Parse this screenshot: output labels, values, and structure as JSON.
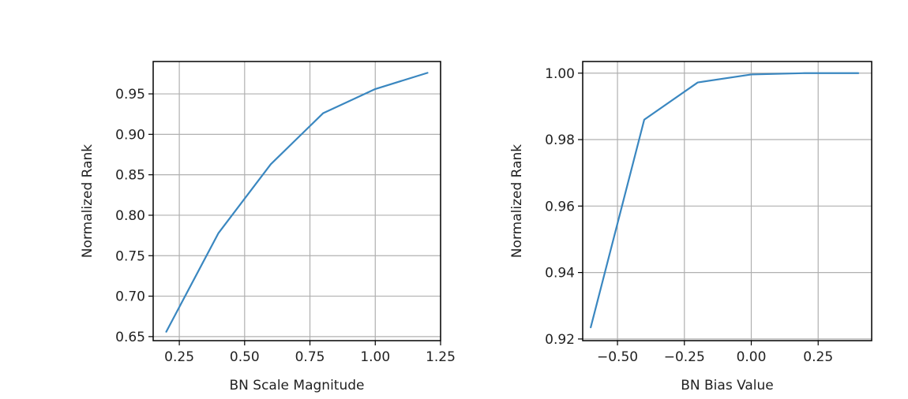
{
  "chart_data": [
    {
      "type": "line",
      "xlabel": "BN Scale Magnitude",
      "ylabel": "Normalized Rank",
      "xlim": [
        0.15,
        1.25
      ],
      "ylim": [
        0.645,
        0.99
      ],
      "xticks": [
        0.25,
        0.5,
        0.75,
        1.0,
        1.25
      ],
      "xtick_labels": [
        "0.25",
        "0.50",
        "0.75",
        "1.00",
        "1.25"
      ],
      "yticks": [
        0.65,
        0.7,
        0.75,
        0.8,
        0.85,
        0.9,
        0.95
      ],
      "ytick_labels": [
        "0.65",
        "0.70",
        "0.75",
        "0.80",
        "0.85",
        "0.90",
        "0.95"
      ],
      "grid": true,
      "color": "#3a87c0",
      "x": [
        0.2,
        0.4,
        0.6,
        0.8,
        1.0,
        1.2
      ],
      "y": [
        0.656,
        0.778,
        0.863,
        0.926,
        0.956,
        0.976
      ]
    },
    {
      "type": "line",
      "xlabel": "BN Bias Value",
      "ylabel": "Normalized Rank",
      "xlim": [
        -0.63,
        0.45
      ],
      "ylim": [
        0.9195,
        1.0035
      ],
      "xticks": [
        -0.5,
        -0.25,
        0.0,
        0.25
      ],
      "xtick_labels": [
        "−0.50",
        "−0.25",
        "0.00",
        "0.25"
      ],
      "yticks": [
        0.92,
        0.94,
        0.96,
        0.98,
        1.0
      ],
      "ytick_labels": [
        "0.92",
        "0.94",
        "0.96",
        "0.98",
        "1.00"
      ],
      "grid": true,
      "color": "#3a87c0",
      "x": [
        -0.6,
        -0.4,
        -0.2,
        0.0,
        0.2,
        0.4
      ],
      "y": [
        0.9235,
        0.986,
        0.9972,
        0.9996,
        1.0,
        1.0
      ]
    }
  ]
}
